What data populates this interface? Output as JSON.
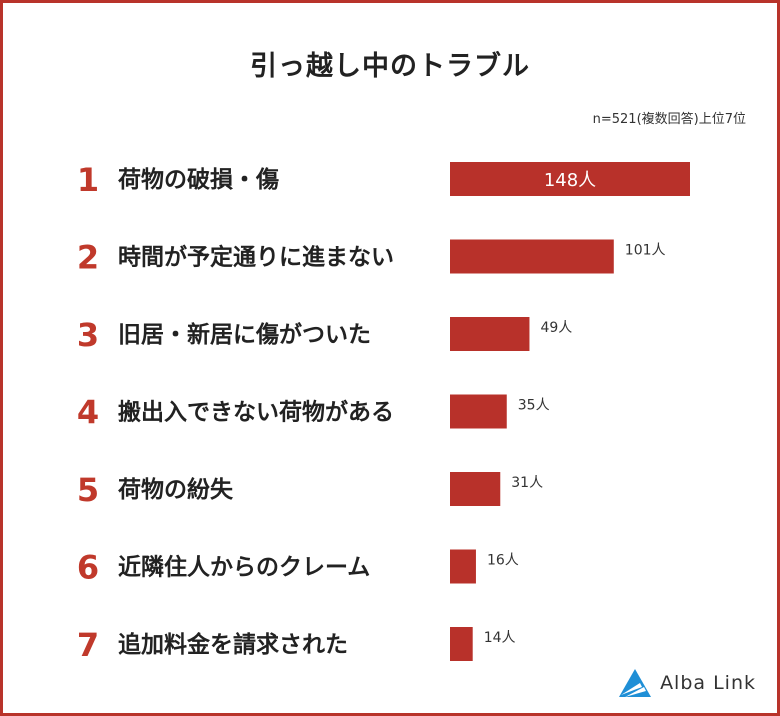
{
  "chart_data": {
    "type": "bar",
    "title": "引っ越し中のトラブル",
    "note": "n=521(複数回答)上位7位",
    "unit": "人",
    "bar_color": "#b8312a",
    "ranks": [
      "1",
      "2",
      "3",
      "4",
      "5",
      "6",
      "7"
    ],
    "categories": [
      "荷物の破損・傷",
      "時間が予定通りに進まない",
      "旧居・新居に傷がついた",
      "搬出入できない荷物がある",
      "荷物の紛失",
      "近隣住人からのクレーム",
      "追加料金を請求された"
    ],
    "values": [
      148,
      101,
      49,
      35,
      31,
      16,
      14
    ],
    "value_labels": [
      "148人",
      "101人",
      "49人",
      "35人",
      "31人",
      "16人",
      "14人"
    ]
  },
  "logo": {
    "text": "Alba Link",
    "icon": "alba-link-logo-icon",
    "color": "#1f8fd6"
  }
}
